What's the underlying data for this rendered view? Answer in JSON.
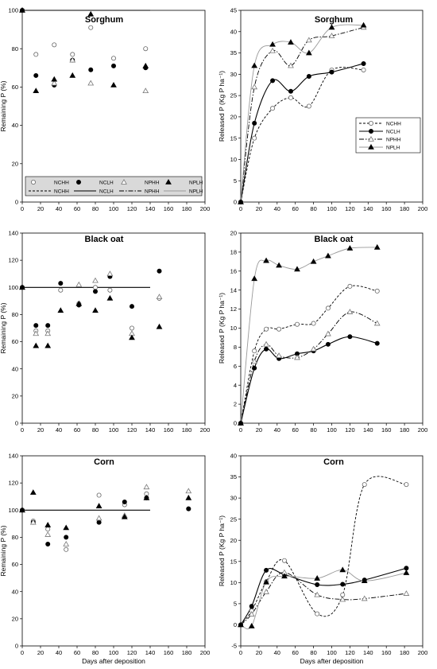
{
  "figure": {
    "xlabel_bottom": "Days after deposition"
  },
  "chart_data": [
    {
      "id": "sorghum-remaining",
      "type": "scatter",
      "title": "Sorghum",
      "xlabel": "",
      "ylabel": "Remaining P (%)",
      "xlim": [
        0,
        200
      ],
      "ylim": [
        0,
        100
      ],
      "xticks": [
        0,
        20,
        40,
        60,
        80,
        100,
        120,
        140,
        160,
        180,
        200
      ],
      "yticks": [
        0,
        20,
        40,
        60,
        80,
        100
      ],
      "reference_line": 100,
      "series": [
        {
          "name": "NCHH",
          "marker": "circle-open",
          "x": [
            0,
            15,
            35,
            55,
            75,
            100,
            135
          ],
          "y": [
            100,
            77,
            82,
            77,
            91,
            75,
            80
          ]
        },
        {
          "name": "NCLH",
          "marker": "circle-filled",
          "x": [
            0,
            15,
            35,
            55,
            75,
            100,
            135
          ],
          "y": [
            100,
            66,
            61,
            74,
            69,
            71,
            70
          ]
        },
        {
          "name": "NPHH",
          "marker": "triangle-open",
          "x": [
            0,
            15,
            35,
            55,
            75,
            100,
            135
          ],
          "y": [
            100,
            null,
            62,
            74,
            62,
            null,
            58
          ]
        },
        {
          "name": "NPLH",
          "marker": "triangle-filled",
          "x": [
            0,
            15,
            35,
            55,
            75,
            100,
            135
          ],
          "y": [
            100,
            58,
            64,
            66,
            98,
            61,
            71
          ]
        }
      ],
      "legend": {
        "position": "bottom",
        "symbol_row": [
          "NCHH",
          "NCLH",
          "NPHH",
          "NPLH"
        ],
        "line_row": [
          "NCHH",
          "NCLH",
          "NPHH",
          "NPLH"
        ]
      }
    },
    {
      "id": "sorghum-released",
      "type": "line",
      "title": "Sorghum",
      "xlabel": "",
      "ylabel": "Released P (Kg P ha⁻¹)",
      "xlim": [
        0,
        200
      ],
      "ylim": [
        0,
        45
      ],
      "xticks": [
        0,
        20,
        40,
        60,
        80,
        100,
        120,
        140,
        160,
        180,
        200
      ],
      "yticks": [
        0,
        5,
        10,
        15,
        20,
        25,
        30,
        35,
        40,
        45
      ],
      "series": [
        {
          "name": "NCHH",
          "marker": "circle-open",
          "dash": "short",
          "x": [
            0,
            15,
            35,
            55,
            75,
            100,
            135
          ],
          "y": [
            0,
            15,
            22,
            24.5,
            22.5,
            31,
            31
          ]
        },
        {
          "name": "NCLH",
          "marker": "circle-filled",
          "dash": "solid",
          "x": [
            0,
            15,
            35,
            55,
            75,
            100,
            135
          ],
          "y": [
            0,
            18.5,
            28.5,
            26,
            29.5,
            30.5,
            32.5
          ]
        },
        {
          "name": "NPHH",
          "marker": "triangle-open",
          "dash": "dashdot",
          "x": [
            0,
            15,
            35,
            55,
            75,
            100,
            135
          ],
          "y": [
            0,
            27,
            35.5,
            32,
            38,
            39,
            41
          ]
        },
        {
          "name": "NPLH",
          "marker": "triangle-filled",
          "dash": "gray",
          "x": [
            0,
            15,
            35,
            55,
            75,
            100,
            135
          ],
          "y": [
            0,
            32,
            37,
            37.5,
            35,
            41,
            41.5
          ]
        }
      ],
      "legend": {
        "position": "middle-right",
        "entries": [
          "NCHH",
          "NCLH",
          "NPHH",
          "NPLH"
        ]
      }
    },
    {
      "id": "blackoat-remaining",
      "type": "scatter",
      "title": "Black oat",
      "xlabel": "",
      "ylabel": "Remaining P (%)",
      "xlim": [
        0,
        200
      ],
      "ylim": [
        0,
        140
      ],
      "xticks": [
        0,
        20,
        40,
        60,
        80,
        100,
        120,
        140,
        160,
        180,
        200
      ],
      "yticks": [
        0,
        20,
        40,
        60,
        80,
        100,
        120,
        140
      ],
      "reference_line": 100,
      "series": [
        {
          "name": "NCHH",
          "marker": "circle-open",
          "x": [
            0,
            15,
            28,
            42,
            62,
            80,
            96,
            120,
            150
          ],
          "y": [
            100,
            68,
            68,
            98,
            88,
            100,
            98,
            70,
            92
          ]
        },
        {
          "name": "NCLH",
          "marker": "circle-filled",
          "x": [
            0,
            15,
            28,
            42,
            62,
            80,
            96,
            120,
            150
          ],
          "y": [
            100,
            72,
            72,
            103,
            87,
            97,
            108,
            86,
            112
          ]
        },
        {
          "name": "NPHH",
          "marker": "triangle-open",
          "x": [
            0,
            15,
            28,
            42,
            62,
            80,
            96,
            120,
            150
          ],
          "y": [
            100,
            66,
            66,
            null,
            102,
            105,
            110,
            66,
            93
          ]
        },
        {
          "name": "NPLH",
          "marker": "triangle-filled",
          "x": [
            0,
            15,
            28,
            42,
            62,
            80,
            96,
            120,
            150
          ],
          "y": [
            100,
            57,
            57,
            83,
            88,
            83,
            92,
            63,
            71
          ]
        }
      ]
    },
    {
      "id": "blackoat-released",
      "type": "line",
      "title": "Black oat",
      "xlabel": "",
      "ylabel": "Released P (Kg P ha⁻¹)",
      "xlim": [
        0,
        200
      ],
      "ylim": [
        0,
        20
      ],
      "xticks": [
        0,
        20,
        40,
        60,
        80,
        100,
        120,
        140,
        160,
        180,
        200
      ],
      "yticks": [
        0,
        2,
        4,
        6,
        8,
        10,
        12,
        14,
        16,
        18,
        20
      ],
      "series": [
        {
          "name": "NCHH",
          "marker": "circle-open",
          "dash": "short",
          "x": [
            0,
            15,
            28,
            42,
            62,
            80,
            96,
            120,
            150
          ],
          "y": [
            0,
            7.6,
            9.9,
            9.9,
            10.4,
            10.5,
            12.1,
            14.4,
            13.9
          ]
        },
        {
          "name": "NCLH",
          "marker": "circle-filled",
          "dash": "solid",
          "x": [
            0,
            15,
            28,
            42,
            62,
            80,
            96,
            120,
            150
          ],
          "y": [
            0,
            5.8,
            7.8,
            6.8,
            7.3,
            7.6,
            8.3,
            9.1,
            8.4
          ]
        },
        {
          "name": "NPHH",
          "marker": "triangle-open",
          "dash": "dashdot",
          "x": [
            0,
            15,
            28,
            42,
            62,
            80,
            96,
            120,
            150
          ],
          "y": [
            0,
            6.5,
            8.3,
            7.1,
            6.9,
            7.8,
            9.4,
            11.7,
            10.5
          ]
        },
        {
          "name": "NPLH",
          "marker": "triangle-filled",
          "dash": "gray",
          "x": [
            0,
            15,
            28,
            42,
            62,
            80,
            96,
            120,
            150
          ],
          "y": [
            0,
            15.2,
            17.1,
            16.6,
            16.2,
            17.0,
            17.6,
            18.4,
            18.5
          ]
        }
      ]
    },
    {
      "id": "corn-remaining",
      "type": "scatter",
      "title": "Corn",
      "xlabel": "Days after deposition",
      "ylabel": "Remaining P (%)",
      "xlim": [
        0,
        200
      ],
      "ylim": [
        0,
        140
      ],
      "xticks": [
        0,
        20,
        40,
        60,
        80,
        100,
        120,
        140,
        160,
        180,
        200
      ],
      "yticks": [
        0,
        20,
        40,
        60,
        80,
        100,
        120,
        140
      ],
      "reference_line": 100,
      "series": [
        {
          "name": "NCHH",
          "marker": "circle-open",
          "x": [
            0,
            12,
            28,
            48,
            84,
            112,
            136,
            182
          ],
          "y": [
            100,
            92,
            86,
            71,
            111,
            104,
            112,
            101
          ]
        },
        {
          "name": "NCLH",
          "marker": "circle-filled",
          "x": [
            0,
            12,
            28,
            48,
            84,
            112,
            136,
            182
          ],
          "y": [
            100,
            91,
            75,
            80,
            91,
            106,
            109,
            101
          ]
        },
        {
          "name": "NPHH",
          "marker": "triangle-open",
          "x": [
            0,
            12,
            28,
            48,
            84,
            112,
            136,
            182
          ],
          "y": [
            100,
            91,
            82,
            75,
            94,
            96,
            117,
            114
          ]
        },
        {
          "name": "NPLH",
          "marker": "triangle-filled",
          "x": [
            0,
            12,
            28,
            48,
            84,
            112,
            136,
            182
          ],
          "y": [
            100,
            113,
            89,
            87,
            103,
            95,
            109,
            109
          ]
        }
      ]
    },
    {
      "id": "corn-released",
      "type": "line",
      "title": "Corn",
      "xlabel": "Days after deposition",
      "ylabel": "Released P (Kg P ha⁻¹)",
      "xlim": [
        0,
        200
      ],
      "ylim": [
        -5,
        40
      ],
      "xticks": [
        0,
        20,
        40,
        60,
        80,
        100,
        120,
        140,
        160,
        180,
        200
      ],
      "yticks": [
        -5,
        0,
        5,
        10,
        15,
        20,
        25,
        30,
        35,
        40
      ],
      "series": [
        {
          "name": "NCHH",
          "marker": "circle-open",
          "dash": "short",
          "x": [
            0,
            12,
            28,
            48,
            84,
            112,
            136,
            182
          ],
          "y": [
            0,
            3.3,
            10.2,
            15.2,
            2.6,
            7.1,
            33.2,
            33.2
          ]
        },
        {
          "name": "NCLH",
          "marker": "circle-filled",
          "dash": "solid",
          "x": [
            0,
            12,
            28,
            48,
            84,
            112,
            136,
            182
          ],
          "y": [
            0,
            4.4,
            12.9,
            11.9,
            9.5,
            9.6,
            10.6,
            13.4
          ]
        },
        {
          "name": "NPHH",
          "marker": "triangle-open",
          "dash": "dashdot",
          "x": [
            0,
            12,
            28,
            48,
            84,
            112,
            136,
            182
          ],
          "y": [
            0,
            2.5,
            7.8,
            12.4,
            7.1,
            6.0,
            6.2,
            7.4
          ]
        },
        {
          "name": "NPLH",
          "marker": "triangle-filled",
          "dash": "gray",
          "x": [
            0,
            12,
            28,
            48,
            84,
            112,
            136,
            182
          ],
          "y": [
            0,
            -0.3,
            10.1,
            11.5,
            11.0,
            13.0,
            10.4,
            12.3
          ]
        }
      ]
    }
  ]
}
